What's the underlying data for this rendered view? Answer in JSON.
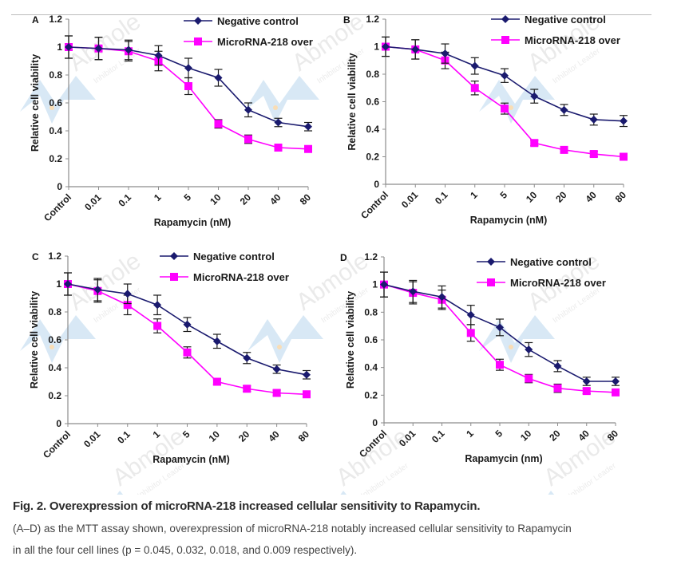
{
  "figure": {
    "caption_title": "Fig. 2. Overexpression of microRNA-218 increased cellular sensitivity to Rapamycin.",
    "caption_line1": "(A–D) as the MTT assay shown, overexpression of microRNA-218 notably increased cellular sensitivity to Rapamycin",
    "caption_line2": "in all the four cell lines (p = 0.045, 0.032, 0.018, and 0.009 respectively).",
    "watermark": {
      "brand": "Abmole",
      "tagline": "Inhibitor Leader"
    }
  },
  "colors": {
    "negative_control": "#1a1a6e",
    "mir218": "#ff00ff",
    "error_bar": "#1a1a1a",
    "axis": "#8c8c8c",
    "watermark_logo": "#b9d7ee"
  },
  "chart_data": [
    {
      "panel": "A",
      "type": "line",
      "title": "",
      "xlabel": "Rapamycin (nM)",
      "ylabel": "Relative cell viability",
      "categories": [
        "Control",
        "0.01",
        "0.1",
        "1",
        "5",
        "10",
        "20",
        "40",
        "80"
      ],
      "yticks": [
        "0",
        "0.2",
        "0.4",
        "0.6",
        "0.8",
        "1",
        "1.2"
      ],
      "ylim": [
        0,
        1.2
      ],
      "grid": false,
      "legend": "top-right",
      "series": [
        {
          "name": "Negative control",
          "marker": "diamond",
          "values": [
            1.0,
            0.99,
            0.98,
            0.94,
            0.85,
            0.78,
            0.55,
            0.46,
            0.43
          ],
          "errors": [
            0.08,
            0.08,
            0.07,
            0.07,
            0.07,
            0.06,
            0.05,
            0.03,
            0.03
          ]
        },
        {
          "name": "MicroRNA-218 over",
          "marker": "square",
          "values": [
            1.0,
            0.99,
            0.97,
            0.9,
            0.72,
            0.45,
            0.34,
            0.28,
            0.27
          ],
          "errors": [
            0.08,
            0.08,
            0.07,
            0.07,
            0.06,
            0.03,
            0.03,
            0.02,
            0.02
          ]
        }
      ]
    },
    {
      "panel": "B",
      "type": "line",
      "title": "",
      "xlabel": "Rapamycin (nM)",
      "ylabel": "Relative cell viability",
      "categories": [
        "Control",
        "0.01",
        "0.1",
        "1",
        "5",
        "10",
        "20",
        "40",
        "80"
      ],
      "yticks": [
        "0",
        "0.2",
        "0.4",
        "0.6",
        "0.8",
        "1",
        "1.2"
      ],
      "ylim": [
        0,
        1.2
      ],
      "grid": false,
      "legend": "top-right",
      "series": [
        {
          "name": "Negative control",
          "marker": "diamond",
          "values": [
            1.0,
            0.98,
            0.95,
            0.86,
            0.79,
            0.64,
            0.54,
            0.47,
            0.46
          ],
          "errors": [
            0.07,
            0.07,
            0.07,
            0.06,
            0.05,
            0.05,
            0.04,
            0.04,
            0.04
          ]
        },
        {
          "name": "MicroRNA-218 over",
          "marker": "square",
          "values": [
            1.0,
            0.98,
            0.9,
            0.7,
            0.55,
            0.3,
            0.25,
            0.22,
            0.2
          ],
          "errors": [
            0.07,
            0.07,
            0.06,
            0.05,
            0.04,
            0.02,
            0.02,
            0.02,
            0.01
          ]
        }
      ]
    },
    {
      "panel": "C",
      "type": "line",
      "title": "",
      "xlabel": "Rapamycin (nM)",
      "ylabel": "Relative cell viability",
      "categories": [
        "Control",
        "0.01",
        "0.1",
        "1",
        "5",
        "10",
        "20",
        "40",
        "80"
      ],
      "yticks": [
        "0",
        "0.2",
        "0.4",
        "0.6",
        "0.8",
        "1",
        "1.2"
      ],
      "ylim": [
        0,
        1.2
      ],
      "grid": false,
      "legend": "top-right",
      "series": [
        {
          "name": "Negative control",
          "marker": "diamond",
          "values": [
            1.0,
            0.96,
            0.93,
            0.85,
            0.71,
            0.59,
            0.47,
            0.39,
            0.35
          ],
          "errors": [
            0.08,
            0.08,
            0.07,
            0.07,
            0.05,
            0.05,
            0.04,
            0.03,
            0.03
          ]
        },
        {
          "name": "MicroRNA-218 over",
          "marker": "square",
          "values": [
            1.0,
            0.95,
            0.85,
            0.7,
            0.51,
            0.3,
            0.25,
            0.22,
            0.21
          ],
          "errors": [
            0.08,
            0.08,
            0.07,
            0.05,
            0.04,
            0.02,
            0.02,
            0.02,
            0.02
          ]
        }
      ]
    },
    {
      "panel": "D",
      "type": "line",
      "title": "",
      "xlabel": "Rapamycin (nm)",
      "ylabel": "Relative cell viability",
      "categories": [
        "Control",
        "0.01",
        "0.1",
        "1",
        "5",
        "10",
        "20",
        "40",
        "80"
      ],
      "yticks": [
        "0",
        "0.2",
        "0.4",
        "0.6",
        "0.8",
        "1",
        "1.2"
      ],
      "ylim": [
        0,
        1.2
      ],
      "grid": false,
      "legend": "top-right",
      "series": [
        {
          "name": "Negative control",
          "marker": "diamond",
          "values": [
            1.0,
            0.95,
            0.91,
            0.78,
            0.69,
            0.53,
            0.41,
            0.3,
            0.3
          ],
          "errors": [
            0.09,
            0.08,
            0.08,
            0.07,
            0.06,
            0.05,
            0.04,
            0.03,
            0.03
          ]
        },
        {
          "name": "MicroRNA-218 over",
          "marker": "square",
          "values": [
            1.0,
            0.94,
            0.89,
            0.65,
            0.42,
            0.32,
            0.25,
            0.23,
            0.22
          ],
          "errors": [
            0.09,
            0.08,
            0.07,
            0.06,
            0.04,
            0.03,
            0.03,
            0.02,
            0.02
          ]
        }
      ]
    }
  ]
}
